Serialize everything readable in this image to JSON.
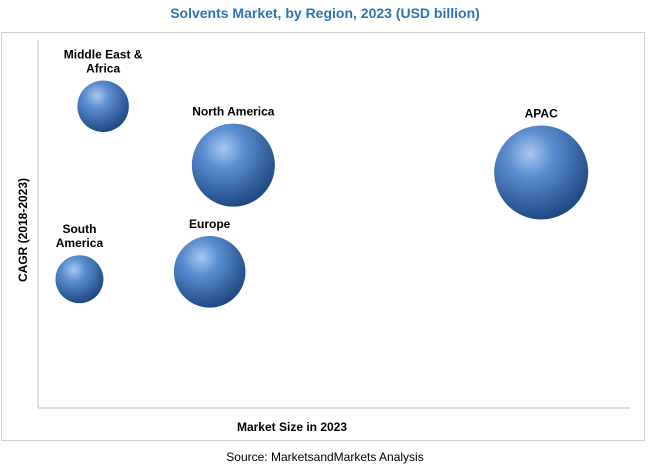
{
  "chart_data": {
    "type": "scatter",
    "title": "Solvents Market, by Region, 2023 (USD billion)",
    "xlabel": "Market Size in 2023",
    "ylabel": "CAGR (2018-2023)",
    "grid": false,
    "legend": "none",
    "bubble_color": "#3f6fad",
    "points": [
      {
        "label": "Middle East & Africa",
        "label_lines": [
          "Middle East &",
          "Africa"
        ],
        "x": 0.11,
        "y": 0.82,
        "size": 0.3
      },
      {
        "label": "North America",
        "label_lines": [
          "North America"
        ],
        "x": 0.33,
        "y": 0.66,
        "size": 0.78
      },
      {
        "label": "APAC",
        "label_lines": [
          "APAC"
        ],
        "x": 0.85,
        "y": 0.64,
        "size": 1.0
      },
      {
        "label": "South America",
        "label_lines": [
          "South",
          "America"
        ],
        "x": 0.07,
        "y": 0.35,
        "size": 0.26
      },
      {
        "label": "Europe",
        "label_lines": [
          "Europe"
        ],
        "x": 0.29,
        "y": 0.37,
        "size": 0.58
      }
    ]
  },
  "source": "Source: MarketsandMarkets Analysis"
}
